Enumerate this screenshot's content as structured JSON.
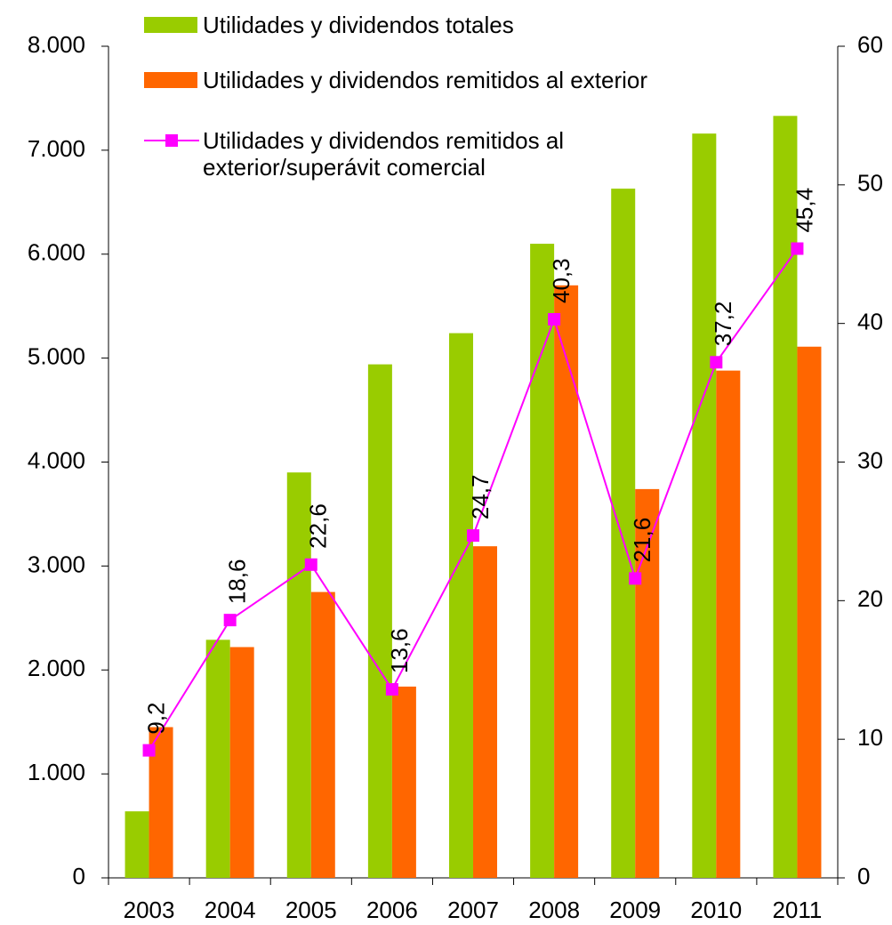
{
  "chart_data": {
    "type": "bar",
    "categories": [
      "2003",
      "2004",
      "2005",
      "2006",
      "2007",
      "2008",
      "2009",
      "2010",
      "2011"
    ],
    "series": [
      {
        "name": "Utilidades y dividendos totales",
        "color": "#99cc00",
        "values": [
          640,
          2290,
          3900,
          4940,
          5240,
          6100,
          6630,
          7160,
          7330
        ]
      },
      {
        "name": "Utilidades y dividendos remitidos al exterior",
        "color": "#ff6600",
        "values": [
          1450,
          2220,
          2750,
          1840,
          3190,
          5700,
          3740,
          4880,
          5110
        ]
      },
      {
        "name": "Utilidades y dividendos remitidos al exterior/superávit comercial",
        "type": "line",
        "axis": "y2",
        "color": "#ff00ff",
        "values": [
          9.2,
          18.6,
          22.6,
          13.6,
          24.7,
          40.3,
          21.6,
          37.2,
          45.4
        ],
        "value_labels": [
          "9,2",
          "18,6",
          "22,6",
          "13,6",
          "24,7",
          "40,3",
          "21,6",
          "37,2",
          "45,4"
        ]
      }
    ],
    "ylim": [
      0,
      8000
    ],
    "yticks": [
      0,
      {
        "value": 1000,
        "label": "1.000"
      },
      {
        "value": 2000,
        "label": "2.000"
      },
      {
        "value": 3000,
        "label": "3.000"
      },
      {
        "value": 4000,
        "label": "4.000"
      },
      {
        "value": 5000,
        "label": "5.000"
      },
      {
        "value": 6000,
        "label": "6.000"
      },
      {
        "value": 7000,
        "label": "7.000"
      },
      {
        "value": 8000,
        "label": "8.000"
      }
    ],
    "y2lim": [
      0,
      60
    ],
    "y2ticks": [
      0,
      10,
      20,
      30,
      40,
      50,
      60
    ]
  }
}
